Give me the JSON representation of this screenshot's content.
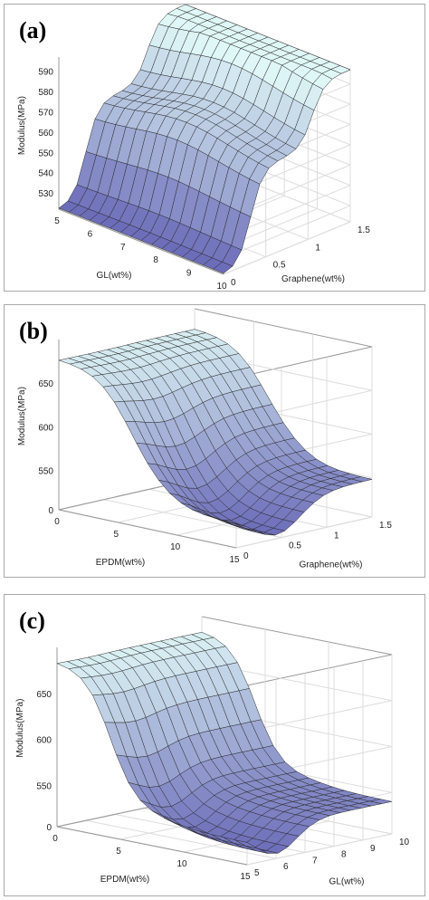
{
  "chart_data": [
    {
      "type": "surface",
      "panel_label": "(a)",
      "xlabel": "GL(wt%)",
      "ylabel": "Graphene(wt%)",
      "zlabel": "Modulus(MPa)",
      "x_ticks": [
        "5",
        "6",
        "7",
        "8",
        "9",
        "10"
      ],
      "y_ticks": [
        "0",
        "0.5",
        "1",
        "1.5"
      ],
      "z_ticks": [
        "530",
        "540",
        "550",
        "560",
        "570",
        "580",
        "590"
      ],
      "x_range": [
        5,
        10
      ],
      "y_range": [
        0,
        1.5
      ],
      "z_range": [
        522,
        597
      ],
      "grid": true,
      "colormap": [
        "#6a6ab8",
        "#dff7f6"
      ]
    },
    {
      "type": "surface",
      "panel_label": "(b)",
      "xlabel": "EPDM(wt%)",
      "ylabel": "Graphene(wt%)",
      "zlabel": "Modulus(MPa)",
      "x_ticks": [
        "0",
        "5",
        "10",
        "15"
      ],
      "y_ticks": [
        "0",
        "0.5",
        "1",
        "1.5"
      ],
      "z_ticks": [
        "0",
        "550",
        "600",
        "650"
      ],
      "x_range": [
        0,
        15
      ],
      "y_range": [
        0,
        1.5
      ],
      "z_range": [
        505,
        700
      ],
      "grid": true,
      "colormap": [
        "#6a6ab8",
        "#dff7f6"
      ]
    },
    {
      "type": "surface",
      "panel_label": "(c)",
      "xlabel": "EPDM(wt%)",
      "ylabel": "GL(wt%)",
      "zlabel": "Modulus(MPa)",
      "x_ticks": [
        "0",
        "5",
        "10",
        "15"
      ],
      "y_ticks": [
        "5",
        "6",
        "7",
        "8",
        "9",
        "10"
      ],
      "z_ticks": [
        "0",
        "550",
        "600",
        "650"
      ],
      "x_range": [
        0,
        15
      ],
      "y_range": [
        5,
        10
      ],
      "z_range": [
        505,
        700
      ],
      "grid": true,
      "colormap": [
        "#6a6ab8",
        "#dff7f6"
      ]
    }
  ]
}
